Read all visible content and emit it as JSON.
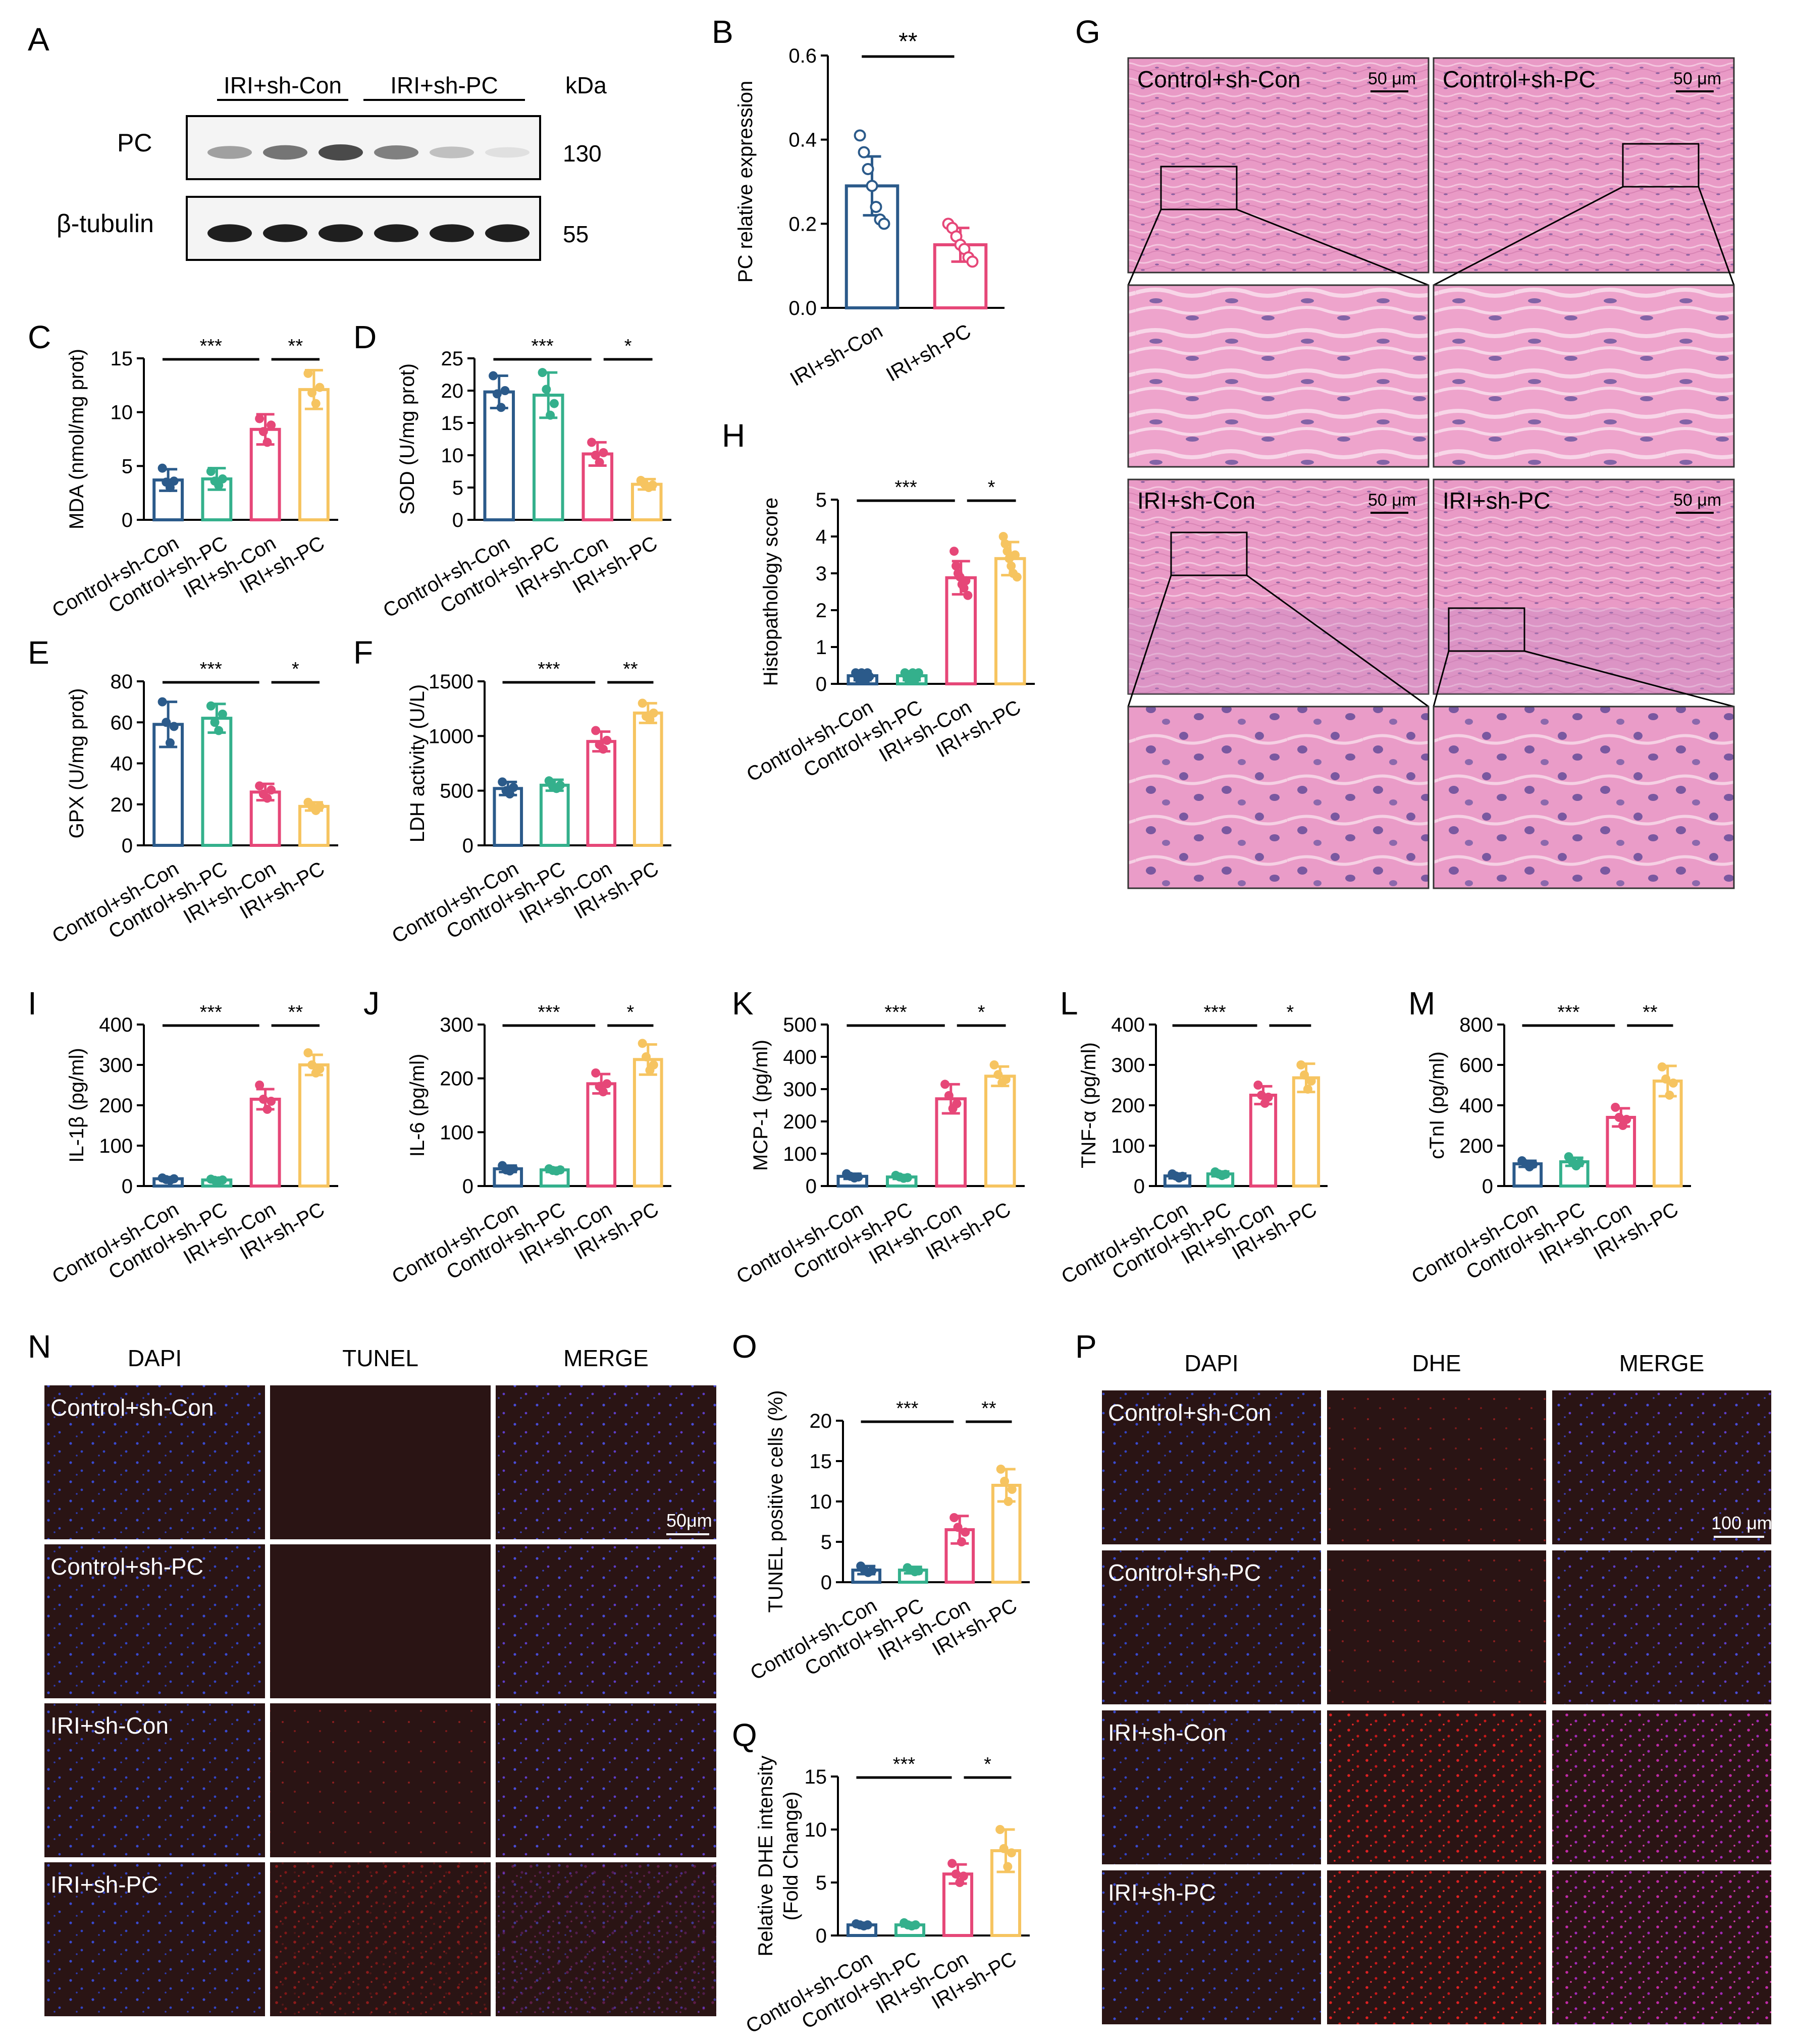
{
  "groups4": [
    "Control+sh-Con",
    "Control+sh-PC",
    "IRI+sh-Con",
    "IRI+sh-PC"
  ],
  "group_colors": [
    "#2b5a8a",
    "#34b08c",
    "#e64778",
    "#f6c460"
  ],
  "blot": {
    "letter": "A",
    "group_labels": [
      "IRI+sh-Con",
      "IRI+sh-PC"
    ],
    "kda_label": "kDa",
    "rows": [
      {
        "label": "PC",
        "kda": "130",
        "band_intensity": [
          0.35,
          0.55,
          0.75,
          0.5,
          0.2,
          0.05
        ]
      },
      {
        "label": "β-tubulin",
        "kda": "55",
        "band_intensity": [
          0.95,
          0.95,
          0.95,
          0.95,
          0.95,
          0.95
        ]
      }
    ]
  },
  "histology": {
    "letter": "G",
    "labels": [
      "Control+sh-Con",
      "Control+sh-PC",
      "IRI+sh-Con",
      "IRI+sh-PC"
    ],
    "scale": "50 μm"
  },
  "fluor_n": {
    "letter": "N",
    "columns": [
      "DAPI",
      "TUNEL",
      "MERGE"
    ],
    "rows": [
      "Control+sh-Con",
      "Control+sh-PC",
      "IRI+sh-Con",
      "IRI+sh-PC"
    ],
    "scale": "50μm"
  },
  "fluor_p": {
    "letter": "P",
    "columns": [
      "DAPI",
      "DHE",
      "MERGE"
    ],
    "rows": [
      "Control+sh-Con",
      "Control+sh-PC",
      "IRI+sh-Con",
      "IRI+sh-PC"
    ],
    "scale": "100 μm"
  },
  "chart_data": [
    {
      "id": "B",
      "type": "bar",
      "categories": [
        "IRI+sh-Con",
        "IRI+sh-PC"
      ],
      "values": [
        0.29,
        0.15
      ],
      "errors": [
        0.07,
        0.04
      ],
      "points": [
        [
          0.41,
          0.37,
          0.33,
          0.29,
          0.24,
          0.21,
          0.2
        ],
        [
          0.2,
          0.19,
          0.17,
          0.15,
          0.14,
          0.12,
          0.11
        ]
      ],
      "ylabel": "PC relative expression",
      "ylim": [
        0,
        0.6
      ],
      "yticks": [
        "0.0",
        "0.2",
        "0.4",
        "0.6"
      ],
      "sig": [
        {
          "from": 0,
          "to": 1,
          "label": "**"
        }
      ],
      "colors": [
        "#2b5a8a",
        "#e64778"
      ]
    },
    {
      "id": "C",
      "type": "bar",
      "values": [
        3.7,
        3.8,
        8.4,
        12.1
      ],
      "errors": [
        1.0,
        1.0,
        1.4,
        1.8
      ],
      "points": [
        [
          4.8,
          3.5,
          3.0,
          3.6
        ],
        [
          4.5,
          3.6,
          3.2,
          3.8
        ],
        [
          9.4,
          8.2,
          7.2,
          8.8
        ],
        [
          13.6,
          11.8,
          10.8,
          12.3
        ]
      ],
      "ylabel": "MDA (nmol/mg prot)",
      "ylim": [
        0,
        15
      ],
      "yticks": [
        "0",
        "5",
        "10",
        "15"
      ],
      "sig": [
        {
          "from": 0,
          "to": 2,
          "label": "***"
        },
        {
          "from": 2,
          "to": 3,
          "label": "**"
        }
      ]
    },
    {
      "id": "D",
      "type": "bar",
      "values": [
        19.8,
        19.3,
        10.2,
        5.5
      ],
      "errors": [
        2.5,
        3.5,
        1.8,
        0.8
      ],
      "points": [
        [
          22.3,
          19.5,
          17.4,
          20.0
        ],
        [
          22.8,
          20.2,
          16.2,
          18.0
        ],
        [
          12.0,
          10.0,
          8.9,
          10.4
        ],
        [
          6.1,
          5.5,
          5.0,
          5.4
        ]
      ],
      "ylabel": "SOD (U/mg prot)",
      "ylim": [
        0,
        25
      ],
      "yticks": [
        "0",
        "5",
        "10",
        "15",
        "20",
        "25"
      ],
      "sig": [
        {
          "from": 0,
          "to": 2,
          "label": "***"
        },
        {
          "from": 2,
          "to": 3,
          "label": "*"
        }
      ]
    },
    {
      "id": "E",
      "type": "bar",
      "values": [
        59,
        62,
        26,
        19
      ],
      "errors": [
        11,
        7,
        4,
        2
      ],
      "points": [
        [
          70,
          60,
          50,
          58
        ],
        [
          68,
          60,
          56,
          64
        ],
        [
          29,
          25,
          23,
          27
        ],
        [
          21,
          19,
          17,
          19
        ]
      ],
      "ylabel": "GPX (U/mg prot)",
      "ylim": [
        0,
        80
      ],
      "yticks": [
        "0",
        "20",
        "40",
        "60",
        "80"
      ],
      "sig": [
        {
          "from": 0,
          "to": 2,
          "label": "***"
        },
        {
          "from": 2,
          "to": 3,
          "label": "*"
        }
      ]
    },
    {
      "id": "F",
      "type": "bar",
      "values": [
        520,
        550,
        950,
        1210
      ],
      "errors": [
        60,
        50,
        90,
        90
      ],
      "points": [
        [
          580,
          500,
          470,
          530
        ],
        [
          590,
          540,
          520,
          550
        ],
        [
          1050,
          920,
          880,
          960
        ],
        [
          1300,
          1180,
          1150,
          1210
        ]
      ],
      "ylabel": "LDH activity (U/L)",
      "ylim": [
        0,
        1500
      ],
      "yticks": [
        "0",
        "500",
        "1000",
        "1500"
      ],
      "sig": [
        {
          "from": 0,
          "to": 2,
          "label": "***"
        },
        {
          "from": 2,
          "to": 3,
          "label": "**"
        }
      ]
    },
    {
      "id": "H",
      "type": "bar",
      "values": [
        0.22,
        0.22,
        2.88,
        3.4
      ],
      "errors": [
        0.12,
        0.12,
        0.45,
        0.45
      ],
      "points": [
        [
          0.3,
          0.2,
          0.1,
          0.3,
          0.2,
          0.1,
          0.3,
          0.2
        ],
        [
          0.3,
          0.2,
          0.1,
          0.2,
          0.3,
          0.1,
          0.2,
          0.3
        ],
        [
          3.6,
          3.2,
          3.0,
          2.9,
          2.7,
          2.6,
          2.8,
          2.4
        ],
        [
          4.0,
          3.8,
          3.6,
          3.4,
          3.2,
          3.0,
          3.5,
          2.9
        ]
      ],
      "ylabel": "Histopathology score",
      "ylim": [
        0,
        5
      ],
      "yticks": [
        "0",
        "1",
        "2",
        "3",
        "4",
        "5"
      ],
      "sig": [
        {
          "from": 0,
          "to": 2,
          "label": "***"
        },
        {
          "from": 2,
          "to": 3,
          "label": "*"
        }
      ]
    },
    {
      "id": "I",
      "type": "bar",
      "values": [
        18,
        15,
        215,
        300
      ],
      "errors": [
        4,
        3,
        25,
        25
      ],
      "points": [
        [
          20,
          16,
          14,
          18
        ],
        [
          17,
          14,
          13,
          15
        ],
        [
          250,
          215,
          190,
          210
        ],
        [
          330,
          300,
          280,
          290
        ]
      ],
      "ylabel": "IL-1β (pg/ml)",
      "ylim": [
        0,
        400
      ],
      "yticks": [
        "0",
        "100",
        "200",
        "300",
        "400"
      ],
      "sig": [
        {
          "from": 0,
          "to": 2,
          "label": "***"
        },
        {
          "from": 2,
          "to": 3,
          "label": "**"
        }
      ]
    },
    {
      "id": "J",
      "type": "bar",
      "values": [
        32,
        30,
        190,
        235
      ],
      "errors": [
        6,
        4,
        18,
        28
      ],
      "points": [
        [
          38,
          30,
          28,
          32
        ],
        [
          32,
          29,
          28,
          30
        ],
        [
          210,
          185,
          175,
          190
        ],
        [
          265,
          240,
          215,
          225
        ]
      ],
      "ylabel": "IL-6 (pg/ml)",
      "ylim": [
        0,
        300
      ],
      "yticks": [
        "0",
        "100",
        "200",
        "300"
      ],
      "sig": [
        {
          "from": 0,
          "to": 2,
          "label": "***"
        },
        {
          "from": 2,
          "to": 3,
          "label": "*"
        }
      ]
    },
    {
      "id": "K",
      "type": "bar",
      "values": [
        30,
        28,
        270,
        340
      ],
      "errors": [
        8,
        6,
        45,
        30
      ],
      "points": [
        [
          38,
          30,
          25,
          28
        ],
        [
          33,
          28,
          24,
          26
        ],
        [
          315,
          280,
          240,
          255
        ],
        [
          375,
          345,
          320,
          330
        ]
      ],
      "ylabel": "MCP-1 (pg/ml)",
      "ylim": [
        0,
        500
      ],
      "yticks": [
        "0",
        "100",
        "200",
        "300",
        "400",
        "500"
      ],
      "sig": [
        {
          "from": 0,
          "to": 2,
          "label": "***"
        },
        {
          "from": 2,
          "to": 3,
          "label": "*"
        }
      ]
    },
    {
      "id": "L",
      "type": "bar",
      "values": [
        25,
        30,
        225,
        268
      ],
      "errors": [
        6,
        6,
        22,
        35
      ],
      "points": [
        [
          30,
          25,
          20,
          24
        ],
        [
          35,
          30,
          26,
          29
        ],
        [
          250,
          225,
          205,
          220
        ],
        [
          300,
          275,
          240,
          260
        ]
      ],
      "ylabel": "TNF-α (pg/ml)",
      "ylim": [
        0,
        400
      ],
      "yticks": [
        "0",
        "100",
        "200",
        "300",
        "400"
      ],
      "sig": [
        {
          "from": 0,
          "to": 2,
          "label": "***"
        },
        {
          "from": 2,
          "to": 3,
          "label": "*"
        }
      ]
    },
    {
      "id": "M",
      "type": "bar",
      "values": [
        110,
        120,
        340,
        520
      ],
      "errors": [
        15,
        20,
        45,
        75
      ],
      "points": [
        [
          125,
          110,
          95,
          108
        ],
        [
          145,
          120,
          100,
          115
        ],
        [
          390,
          340,
          300,
          330
        ],
        [
          590,
          530,
          450,
          510
        ]
      ],
      "ylabel": "cTnI (pg/ml)",
      "ylim": [
        0,
        800
      ],
      "yticks": [
        "0",
        "200",
        "400",
        "600",
        "800"
      ],
      "sig": [
        {
          "from": 0,
          "to": 2,
          "label": "***"
        },
        {
          "from": 2,
          "to": 3,
          "label": "**"
        }
      ]
    },
    {
      "id": "O",
      "type": "bar",
      "values": [
        1.5,
        1.5,
        6.5,
        12.0
      ],
      "errors": [
        0.5,
        0.4,
        1.7,
        2.0
      ],
      "points": [
        [
          2.0,
          1.5,
          1.2,
          1.4
        ],
        [
          1.8,
          1.5,
          1.3,
          1.4
        ],
        [
          8.0,
          6.8,
          5.0,
          6.2
        ],
        [
          14.0,
          12.5,
          10.0,
          11.5
        ]
      ],
      "ylabel": "TUNEL positive cells (%)",
      "ylim": [
        0,
        20
      ],
      "yticks": [
        "0",
        "5",
        "10",
        "15",
        "20"
      ],
      "sig": [
        {
          "from": 0,
          "to": 2,
          "label": "***"
        },
        {
          "from": 2,
          "to": 3,
          "label": "**"
        }
      ]
    },
    {
      "id": "Q",
      "type": "bar",
      "values": [
        1.0,
        1.0,
        5.8,
        8.0
      ],
      "errors": [
        0.1,
        0.15,
        0.9,
        2.0
      ],
      "points": [
        [
          1.1,
          1.0,
          0.9,
          1.0
        ],
        [
          1.2,
          1.0,
          0.9,
          1.0
        ],
        [
          6.8,
          5.8,
          5.0,
          5.6
        ],
        [
          10.0,
          8.2,
          6.5,
          7.8
        ]
      ],
      "ylabel": "Relative DHE intensity",
      "ylabel2": "(Fold Change)",
      "ylim": [
        0,
        15
      ],
      "yticks": [
        "0",
        "5",
        "10",
        "15"
      ],
      "sig": [
        {
          "from": 0,
          "to": 2,
          "label": "***"
        },
        {
          "from": 2,
          "to": 3,
          "label": "*"
        }
      ]
    }
  ]
}
